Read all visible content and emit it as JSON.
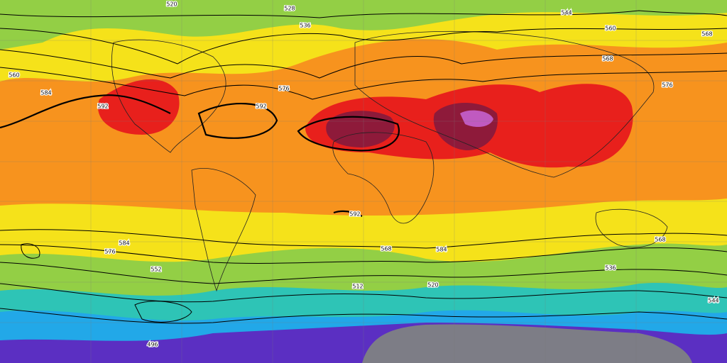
{
  "map": {
    "labels": [
      "528",
      "536",
      "520",
      "544",
      "560",
      "568",
      "576",
      "584",
      "592",
      "592",
      "568",
      "576",
      "592",
      "584",
      "576",
      "568",
      "584",
      "552",
      "536",
      "520",
      "512",
      "496",
      "544",
      "568",
      "560"
    ]
  }
}
